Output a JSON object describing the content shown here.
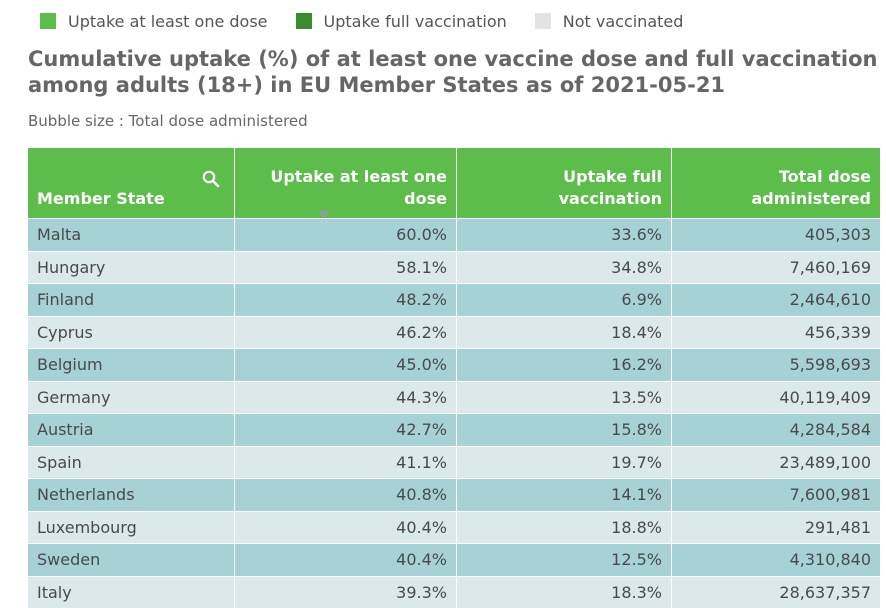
{
  "legend": {
    "items": [
      {
        "label": "Uptake at least one dose",
        "color": "#5cbd4b"
      },
      {
        "label": "Uptake full vaccination",
        "color": "#3a8a2e"
      },
      {
        "label": "Not vaccinated",
        "color": "#e3e3e3"
      }
    ]
  },
  "title": "Cumulative uptake (%) of at least one vaccine dose and full vaccination among adults (18+) in EU Member States as of 2021-05-21",
  "subtitle": "Bubble size : Total dose administered",
  "table": {
    "header_color": "#5cbd4b",
    "columns": [
      "Member State",
      "Uptake at least one dose",
      "Uptake full vaccination",
      "Total dose administered"
    ],
    "sort_icon": "sort-descending-icon",
    "search_icon": "search-icon",
    "rows": [
      [
        "Malta",
        "60.0%",
        "33.6%",
        "405,303"
      ],
      [
        "Hungary",
        "58.1%",
        "34.8%",
        "7,460,169"
      ],
      [
        "Finland",
        "48.2%",
        "6.9%",
        "2,464,610"
      ],
      [
        "Cyprus",
        "46.2%",
        "18.4%",
        "456,339"
      ],
      [
        "Belgium",
        "45.0%",
        "16.2%",
        "5,598,693"
      ],
      [
        "Germany",
        "44.3%",
        "13.5%",
        "40,119,409"
      ],
      [
        "Austria",
        "42.7%",
        "15.8%",
        "4,284,584"
      ],
      [
        "Spain",
        "41.1%",
        "19.7%",
        "23,489,100"
      ],
      [
        "Netherlands",
        "40.8%",
        "14.1%",
        "7,600,981"
      ],
      [
        "Luxembourg",
        "40.4%",
        "18.8%",
        "291,481"
      ],
      [
        "Sweden",
        "40.4%",
        "12.5%",
        "4,310,840"
      ],
      [
        "Italy",
        "39.3%",
        "18.3%",
        "28,637,357"
      ]
    ]
  }
}
